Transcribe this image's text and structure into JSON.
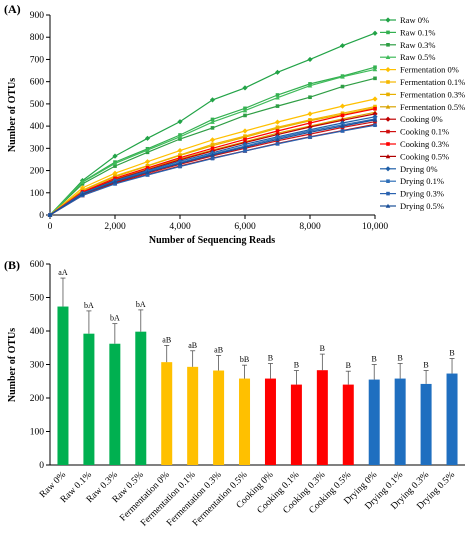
{
  "chart_data": [
    {
      "panel_label": "(A)",
      "type": "line",
      "xlabel": "Number of Sequencing Reads",
      "ylabel": "Number of OTUs",
      "xlim": [
        0,
        10000
      ],
      "ylim": [
        0,
        900
      ],
      "x_ticks": [
        0,
        2000,
        4000,
        6000,
        8000,
        10000
      ],
      "x_tick_labels": [
        "0",
        "2,000",
        "4,000",
        "6,000",
        "8,000",
        "10,000"
      ],
      "y_ticks": [
        0,
        100,
        200,
        300,
        400,
        500,
        600,
        700,
        800,
        900
      ],
      "legend_position": "right",
      "x": [
        0,
        1000,
        2000,
        3000,
        4000,
        5000,
        6000,
        7000,
        8000,
        9000,
        10000
      ],
      "series": [
        {
          "name": "Raw 0%",
          "color": "#22a347",
          "marker": "diamond",
          "values": [
            0,
            155,
            265,
            345,
            420,
            518,
            572,
            642,
            700,
            762,
            818
          ]
        },
        {
          "name": "Raw 0.1%",
          "color": "#33b050",
          "marker": "square",
          "values": [
            0,
            150,
            238,
            298,
            360,
            430,
            480,
            540,
            590,
            625,
            665
          ]
        },
        {
          "name": "Raw 0.3%",
          "color": "#2e9e44",
          "marker": "square",
          "values": [
            0,
            140,
            220,
            282,
            342,
            392,
            448,
            490,
            530,
            578,
            615
          ]
        },
        {
          "name": "Raw 0.5%",
          "color": "#3fbb5a",
          "marker": "triangle",
          "values": [
            0,
            148,
            232,
            292,
            352,
            418,
            470,
            528,
            582,
            622,
            655
          ]
        },
        {
          "name": "Fermentation 0%",
          "color": "#ffc000",
          "marker": "diamond",
          "values": [
            0,
            122,
            188,
            240,
            290,
            338,
            378,
            418,
            455,
            490,
            522
          ]
        },
        {
          "name": "Fermentation 0.1%",
          "color": "#f5b800",
          "marker": "square",
          "values": [
            0,
            112,
            176,
            222,
            270,
            318,
            355,
            395,
            428,
            458,
            488
          ]
        },
        {
          "name": "Fermentation 0.3%",
          "color": "#e8b000",
          "marker": "square",
          "values": [
            0,
            110,
            172,
            220,
            268,
            312,
            350,
            390,
            424,
            452,
            482
          ]
        },
        {
          "name": "Fermentation 0.5%",
          "color": "#d9a400",
          "marker": "triangle",
          "values": [
            0,
            102,
            162,
            210,
            252,
            292,
            330,
            368,
            400,
            432,
            462
          ]
        },
        {
          "name": "Cooking 0%",
          "color": "#c00000",
          "marker": "diamond",
          "values": [
            0,
            100,
            158,
            204,
            248,
            288,
            326,
            362,
            396,
            426,
            455
          ]
        },
        {
          "name": "Cooking 0.1%",
          "color": "#d01010",
          "marker": "square",
          "values": [
            0,
            92,
            146,
            188,
            228,
            266,
            300,
            334,
            364,
            394,
            420
          ]
        },
        {
          "name": "Cooking 0.3%",
          "color": "#ff0000",
          "marker": "square",
          "values": [
            0,
            104,
            165,
            212,
            258,
            300,
            340,
            378,
            414,
            448,
            478
          ]
        },
        {
          "name": "Cooking 0.5%",
          "color": "#b00000",
          "marker": "triangle",
          "values": [
            0,
            88,
            142,
            182,
            220,
            256,
            288,
            322,
            352,
            380,
            408
          ]
        },
        {
          "name": "Drying 0%",
          "color": "#1f5fa8",
          "marker": "diamond",
          "values": [
            0,
            98,
            155,
            200,
            242,
            280,
            318,
            352,
            384,
            414,
            442
          ]
        },
        {
          "name": "Drying 0.1%",
          "color": "#2f6fb8",
          "marker": "square",
          "values": [
            0,
            96,
            152,
            196,
            236,
            274,
            310,
            346,
            378,
            406,
            432
          ]
        },
        {
          "name": "Drying 0.3%",
          "color": "#2a62b0",
          "marker": "square",
          "values": [
            0,
            88,
            140,
            180,
            218,
            254,
            288,
            320,
            350,
            378,
            404
          ]
        },
        {
          "name": "Drying 0.5%",
          "color": "#1a4f98",
          "marker": "triangle",
          "values": [
            0,
            94,
            150,
            192,
            232,
            270,
            305,
            340,
            372,
            400,
            428
          ]
        }
      ]
    },
    {
      "panel_label": "(B)",
      "type": "bar",
      "xlabel": "",
      "ylabel": "Number of OTUs",
      "ylim": [
        0,
        600
      ],
      "y_ticks": [
        0,
        100,
        200,
        300,
        400,
        500,
        600
      ],
      "categories": [
        "Raw 0%",
        "Raw 0.1%",
        "Raw 0.3%",
        "Raw 0.5%",
        "Fermentation 0%",
        "Fermentation 0.1%",
        "Fermentation 0.3%",
        "Fermentation 0.5%",
        "Cooking 0%",
        "Cooking 0.1%",
        "Cooking 0.3%",
        "Cooking 0.5%",
        "Drying 0%",
        "Drying 0.1%",
        "Drying 0.3%",
        "Drying 0.5%"
      ],
      "values": [
        473,
        392,
        362,
        398,
        307,
        293,
        282,
        258,
        258,
        240,
        283,
        240,
        255,
        258,
        242,
        273
      ],
      "errors": [
        85,
        68,
        60,
        65,
        50,
        48,
        45,
        40,
        45,
        42,
        48,
        40,
        45,
        45,
        40,
        45
      ],
      "letters": [
        "aA",
        "bA",
        "bA",
        "bA",
        "aB",
        "aB",
        "aB",
        "bB",
        "B",
        "B",
        "B",
        "B",
        "B",
        "B",
        "B",
        "B"
      ],
      "colors": [
        "#00b050",
        "#00b050",
        "#00b050",
        "#00b050",
        "#ffc000",
        "#ffc000",
        "#ffc000",
        "#ffc000",
        "#ff0000",
        "#ff0000",
        "#ff0000",
        "#ff0000",
        "#1f6fc0",
        "#1f6fc0",
        "#1f6fc0",
        "#1f6fc0"
      ]
    }
  ]
}
